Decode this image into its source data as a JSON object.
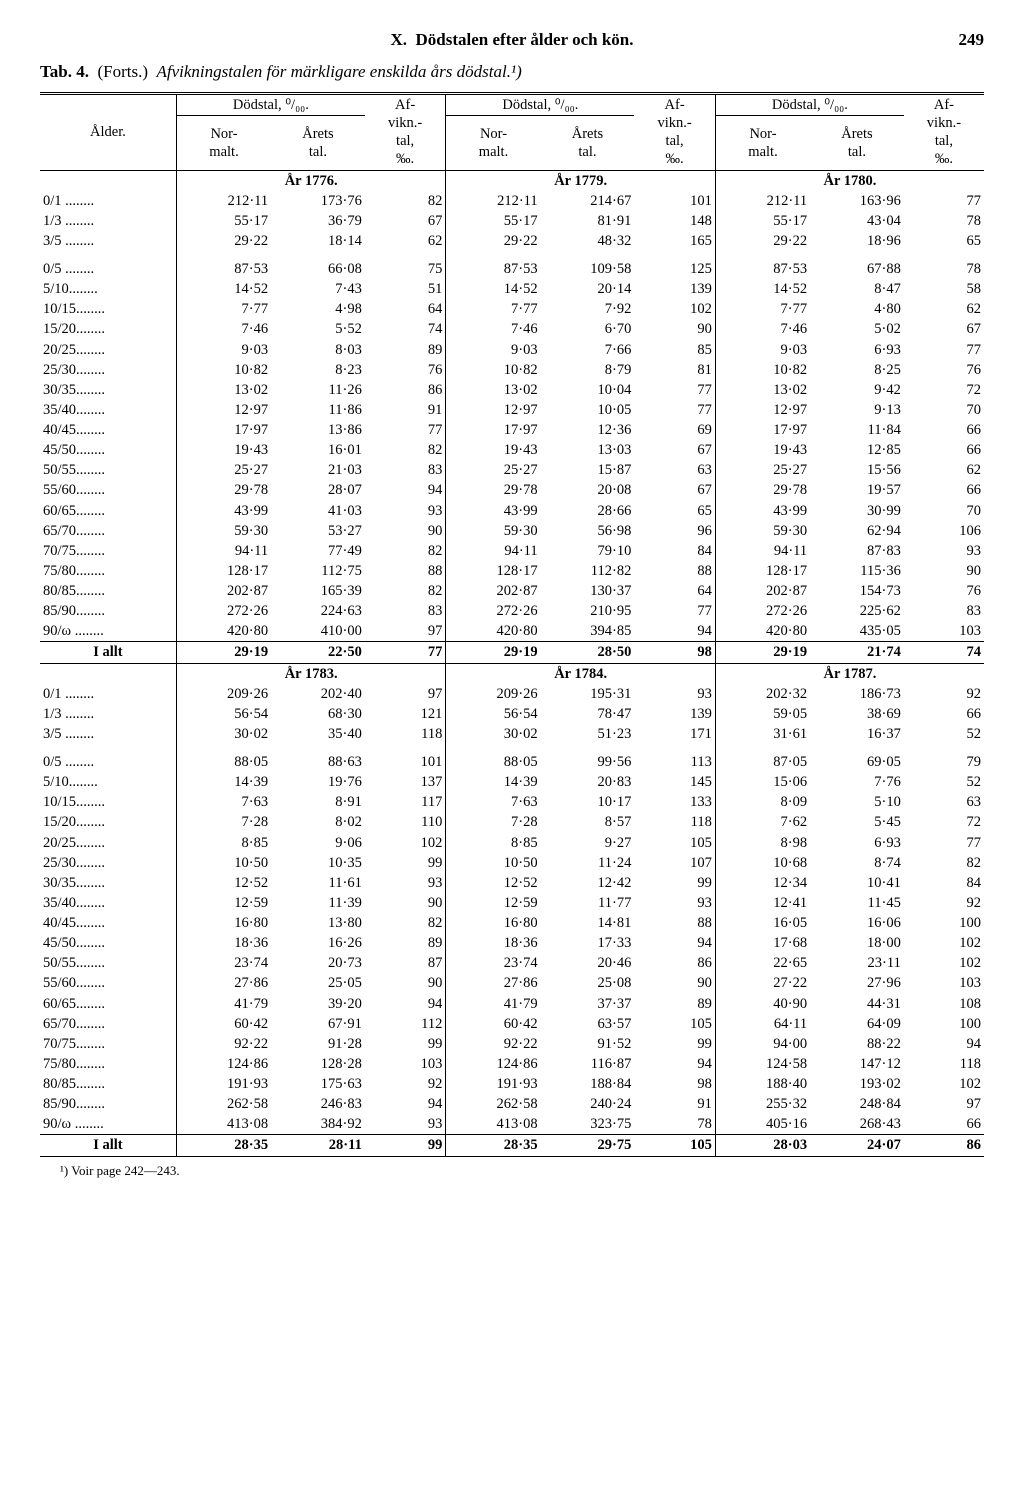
{
  "page": {
    "chapter": "X.",
    "title": "Dödstalen efter ålder och kön.",
    "number": "249"
  },
  "subtitle": {
    "tab": "Tab. 4.",
    "forts": "(Forts.)",
    "desc": "Afvikningstalen för märkligare enskilda års dödstal.¹)"
  },
  "headers": {
    "alder": "Ålder.",
    "dodstal": "Dödstal, ⁰/₀₀.",
    "afvikn": "Af-\nvikn.-\ntal,\n‰.",
    "normalt": "Nor-\nmalt.",
    "arets": "Årets\ntal."
  },
  "section1": {
    "years": [
      "År 1776.",
      "År 1779.",
      "År 1780."
    ],
    "rows": [
      {
        "age": "0/1 ........",
        "v": [
          "212·11",
          "173·76",
          "82",
          "212·11",
          "214·67",
          "101",
          "212·11",
          "163·96",
          "77"
        ]
      },
      {
        "age": "1/3 ........",
        "v": [
          "55·17",
          "36·79",
          "67",
          "55·17",
          "81·91",
          "148",
          "55·17",
          "43·04",
          "78"
        ]
      },
      {
        "age": "3/5 ........",
        "v": [
          "29·22",
          "18·14",
          "62",
          "29·22",
          "48·32",
          "165",
          "29·22",
          "18·96",
          "65"
        ]
      }
    ],
    "rows2": [
      {
        "age": "0/5 ........",
        "v": [
          "87·53",
          "66·08",
          "75",
          "87·53",
          "109·58",
          "125",
          "87·53",
          "67·88",
          "78"
        ]
      },
      {
        "age": "5/10........",
        "v": [
          "14·52",
          "7·43",
          "51",
          "14·52",
          "20·14",
          "139",
          "14·52",
          "8·47",
          "58"
        ]
      },
      {
        "age": "10/15........",
        "v": [
          "7·77",
          "4·98",
          "64",
          "7·77",
          "7·92",
          "102",
          "7·77",
          "4·80",
          "62"
        ]
      },
      {
        "age": "15/20........",
        "v": [
          "7·46",
          "5·52",
          "74",
          "7·46",
          "6·70",
          "90",
          "7·46",
          "5·02",
          "67"
        ]
      },
      {
        "age": "20/25........",
        "v": [
          "9·03",
          "8·03",
          "89",
          "9·03",
          "7·66",
          "85",
          "9·03",
          "6·93",
          "77"
        ]
      },
      {
        "age": "25/30........",
        "v": [
          "10·82",
          "8·23",
          "76",
          "10·82",
          "8·79",
          "81",
          "10·82",
          "8·25",
          "76"
        ]
      },
      {
        "age": "30/35........",
        "v": [
          "13·02",
          "11·26",
          "86",
          "13·02",
          "10·04",
          "77",
          "13·02",
          "9·42",
          "72"
        ]
      },
      {
        "age": "35/40........",
        "v": [
          "12·97",
          "11·86",
          "91",
          "12·97",
          "10·05",
          "77",
          "12·97",
          "9·13",
          "70"
        ]
      },
      {
        "age": "40/45........",
        "v": [
          "17·97",
          "13·86",
          "77",
          "17·97",
          "12·36",
          "69",
          "17·97",
          "11·84",
          "66"
        ]
      },
      {
        "age": "45/50........",
        "v": [
          "19·43",
          "16·01",
          "82",
          "19·43",
          "13·03",
          "67",
          "19·43",
          "12·85",
          "66"
        ]
      },
      {
        "age": "50/55........",
        "v": [
          "25·27",
          "21·03",
          "83",
          "25·27",
          "15·87",
          "63",
          "25·27",
          "15·56",
          "62"
        ]
      },
      {
        "age": "55/60........",
        "v": [
          "29·78",
          "28·07",
          "94",
          "29·78",
          "20·08",
          "67",
          "29·78",
          "19·57",
          "66"
        ]
      },
      {
        "age": "60/65........",
        "v": [
          "43·99",
          "41·03",
          "93",
          "43·99",
          "28·66",
          "65",
          "43·99",
          "30·99",
          "70"
        ]
      },
      {
        "age": "65/70........",
        "v": [
          "59·30",
          "53·27",
          "90",
          "59·30",
          "56·98",
          "96",
          "59·30",
          "62·94",
          "106"
        ]
      },
      {
        "age": "70/75........",
        "v": [
          "94·11",
          "77·49",
          "82",
          "94·11",
          "79·10",
          "84",
          "94·11",
          "87·83",
          "93"
        ]
      },
      {
        "age": "75/80........",
        "v": [
          "128·17",
          "112·75",
          "88",
          "128·17",
          "112·82",
          "88",
          "128·17",
          "115·36",
          "90"
        ]
      },
      {
        "age": "80/85........",
        "v": [
          "202·87",
          "165·39",
          "82",
          "202·87",
          "130·37",
          "64",
          "202·87",
          "154·73",
          "76"
        ]
      },
      {
        "age": "85/90........",
        "v": [
          "272·26",
          "224·63",
          "83",
          "272·26",
          "210·95",
          "77",
          "272·26",
          "225·62",
          "83"
        ]
      },
      {
        "age": "90/ω ........",
        "v": [
          "420·80",
          "410·00",
          "97",
          "420·80",
          "394·85",
          "94",
          "420·80",
          "435·05",
          "103"
        ]
      }
    ],
    "total": {
      "label": "I allt",
      "v": [
        "29·19",
        "22·50",
        "77",
        "29·19",
        "28·50",
        "98",
        "29·19",
        "21·74",
        "74"
      ]
    }
  },
  "section2": {
    "years": [
      "År 1783.",
      "År 1784.",
      "År 1787."
    ],
    "rows": [
      {
        "age": "0/1 ........",
        "v": [
          "209·26",
          "202·40",
          "97",
          "209·26",
          "195·31",
          "93",
          "202·32",
          "186·73",
          "92"
        ]
      },
      {
        "age": "1/3 ........",
        "v": [
          "56·54",
          "68·30",
          "121",
          "56·54",
          "78·47",
          "139",
          "59·05",
          "38·69",
          "66"
        ]
      },
      {
        "age": "3/5 ........",
        "v": [
          "30·02",
          "35·40",
          "118",
          "30·02",
          "51·23",
          "171",
          "31·61",
          "16·37",
          "52"
        ]
      }
    ],
    "rows2": [
      {
        "age": "0/5 ........",
        "v": [
          "88·05",
          "88·63",
          "101",
          "88·05",
          "99·56",
          "113",
          "87·05",
          "69·05",
          "79"
        ]
      },
      {
        "age": "5/10........",
        "v": [
          "14·39",
          "19·76",
          "137",
          "14·39",
          "20·83",
          "145",
          "15·06",
          "7·76",
          "52"
        ]
      },
      {
        "age": "10/15........",
        "v": [
          "7·63",
          "8·91",
          "117",
          "7·63",
          "10·17",
          "133",
          "8·09",
          "5·10",
          "63"
        ]
      },
      {
        "age": "15/20........",
        "v": [
          "7·28",
          "8·02",
          "110",
          "7·28",
          "8·57",
          "118",
          "7·62",
          "5·45",
          "72"
        ]
      },
      {
        "age": "20/25........",
        "v": [
          "8·85",
          "9·06",
          "102",
          "8·85",
          "9·27",
          "105",
          "8·98",
          "6·93",
          "77"
        ]
      },
      {
        "age": "25/30........",
        "v": [
          "10·50",
          "10·35",
          "99",
          "10·50",
          "11·24",
          "107",
          "10·68",
          "8·74",
          "82"
        ]
      },
      {
        "age": "30/35........",
        "v": [
          "12·52",
          "11·61",
          "93",
          "12·52",
          "12·42",
          "99",
          "12·34",
          "10·41",
          "84"
        ]
      },
      {
        "age": "35/40........",
        "v": [
          "12·59",
          "11·39",
          "90",
          "12·59",
          "11·77",
          "93",
          "12·41",
          "11·45",
          "92"
        ]
      },
      {
        "age": "40/45........",
        "v": [
          "16·80",
          "13·80",
          "82",
          "16·80",
          "14·81",
          "88",
          "16·05",
          "16·06",
          "100"
        ]
      },
      {
        "age": "45/50........",
        "v": [
          "18·36",
          "16·26",
          "89",
          "18·36",
          "17·33",
          "94",
          "17·68",
          "18·00",
          "102"
        ]
      },
      {
        "age": "50/55........",
        "v": [
          "23·74",
          "20·73",
          "87",
          "23·74",
          "20·46",
          "86",
          "22·65",
          "23·11",
          "102"
        ]
      },
      {
        "age": "55/60........",
        "v": [
          "27·86",
          "25·05",
          "90",
          "27·86",
          "25·08",
          "90",
          "27·22",
          "27·96",
          "103"
        ]
      },
      {
        "age": "60/65........",
        "v": [
          "41·79",
          "39·20",
          "94",
          "41·79",
          "37·37",
          "89",
          "40·90",
          "44·31",
          "108"
        ]
      },
      {
        "age": "65/70........",
        "v": [
          "60·42",
          "67·91",
          "112",
          "60·42",
          "63·57",
          "105",
          "64·11",
          "64·09",
          "100"
        ]
      },
      {
        "age": "70/75........",
        "v": [
          "92·22",
          "91·28",
          "99",
          "92·22",
          "91·52",
          "99",
          "94·00",
          "88·22",
          "94"
        ]
      },
      {
        "age": "75/80........",
        "v": [
          "124·86",
          "128·28",
          "103",
          "124·86",
          "116·87",
          "94",
          "124·58",
          "147·12",
          "118"
        ]
      },
      {
        "age": "80/85........",
        "v": [
          "191·93",
          "175·63",
          "92",
          "191·93",
          "188·84",
          "98",
          "188·40",
          "193·02",
          "102"
        ]
      },
      {
        "age": "85/90........",
        "v": [
          "262·58",
          "246·83",
          "94",
          "262·58",
          "240·24",
          "91",
          "255·32",
          "248·84",
          "97"
        ]
      },
      {
        "age": "90/ω ........",
        "v": [
          "413·08",
          "384·92",
          "93",
          "413·08",
          "323·75",
          "78",
          "405·16",
          "268·43",
          "66"
        ]
      }
    ],
    "total": {
      "label": "I allt",
      "v": [
        "28·35",
        "28·11",
        "99",
        "28·35",
        "29·75",
        "105",
        "28·03",
        "24·07",
        "86"
      ]
    }
  },
  "footnote": "¹) Voir page 242—243."
}
